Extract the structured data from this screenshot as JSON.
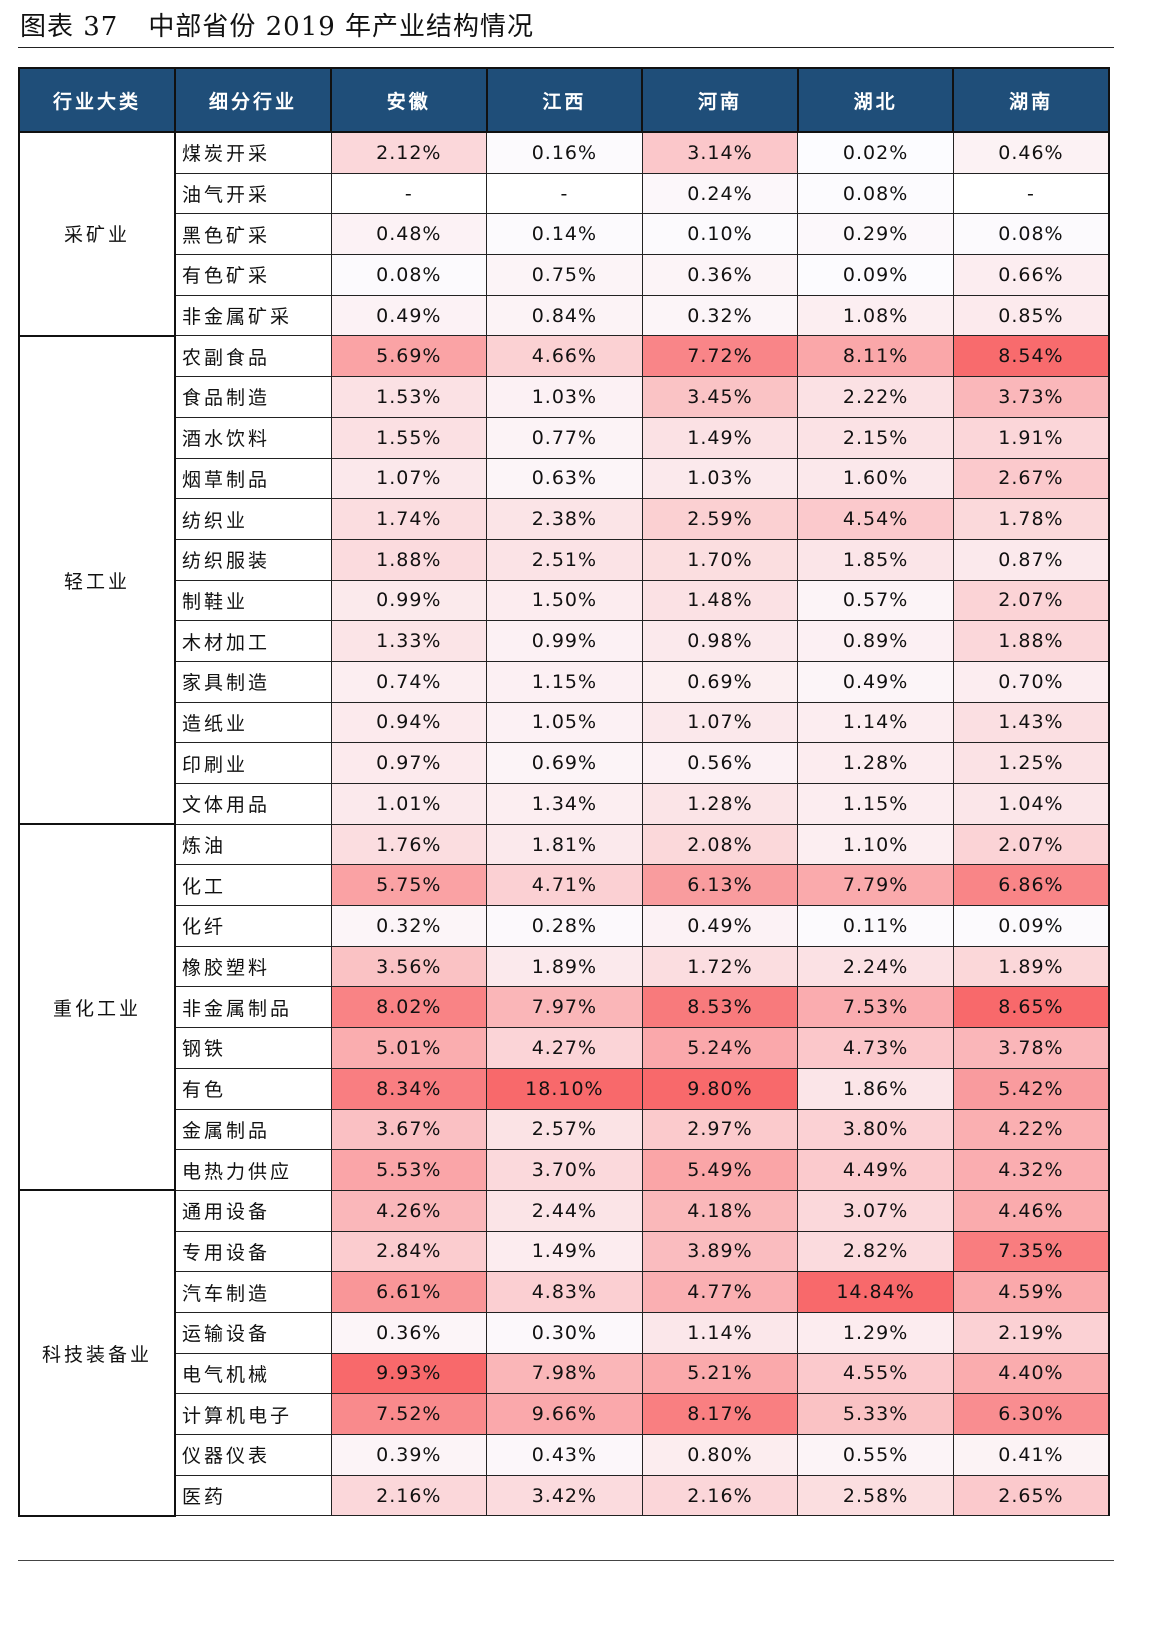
{
  "title": {
    "label": "图表 37",
    "text": "中部省份 2019 年产业结构情况"
  },
  "headers": [
    "行业大类",
    "细分行业",
    "安徽",
    "江西",
    "河南",
    "湖北",
    "湖南"
  ],
  "colors": {
    "header_bg": "#1f4e79",
    "low": "#fcfcff",
    "high": "#f8696b"
  },
  "groups": [
    {
      "name": "采矿业",
      "rows": [
        [
          "煤炭开采",
          "2.12%",
          "0.16%",
          "3.14%",
          "0.02%",
          "0.46%"
        ],
        [
          "油气开采",
          "-",
          "-",
          "0.24%",
          "0.08%",
          "-"
        ],
        [
          "黑色矿采",
          "0.48%",
          "0.14%",
          "0.10%",
          "0.29%",
          "0.08%"
        ],
        [
          "有色矿采",
          "0.08%",
          "0.75%",
          "0.36%",
          "0.09%",
          "0.66%"
        ],
        [
          "非金属矿采",
          "0.49%",
          "0.84%",
          "0.32%",
          "1.08%",
          "0.85%"
        ]
      ]
    },
    {
      "name": "轻工业",
      "rows": [
        [
          "农副食品",
          "5.69%",
          "4.66%",
          "7.72%",
          "8.11%",
          "8.54%"
        ],
        [
          "食品制造",
          "1.53%",
          "1.03%",
          "3.45%",
          "2.22%",
          "3.73%"
        ],
        [
          "酒水饮料",
          "1.55%",
          "0.77%",
          "1.49%",
          "2.15%",
          "1.91%"
        ],
        [
          "烟草制品",
          "1.07%",
          "0.63%",
          "1.03%",
          "1.60%",
          "2.67%"
        ],
        [
          "纺织业",
          "1.74%",
          "2.38%",
          "2.59%",
          "4.54%",
          "1.78%"
        ],
        [
          "纺织服装",
          "1.88%",
          "2.51%",
          "1.70%",
          "1.85%",
          "0.87%"
        ],
        [
          "制鞋业",
          "0.99%",
          "1.50%",
          "1.48%",
          "0.57%",
          "2.07%"
        ],
        [
          "木材加工",
          "1.33%",
          "0.99%",
          "0.98%",
          "0.89%",
          "1.88%"
        ],
        [
          "家具制造",
          "0.74%",
          "1.15%",
          "0.69%",
          "0.49%",
          "0.70%"
        ],
        [
          "造纸业",
          "0.94%",
          "1.05%",
          "1.07%",
          "1.14%",
          "1.43%"
        ],
        [
          "印刷业",
          "0.97%",
          "0.69%",
          "0.56%",
          "1.28%",
          "1.25%"
        ],
        [
          "文体用品",
          "1.01%",
          "1.34%",
          "1.28%",
          "1.15%",
          "1.04%"
        ]
      ]
    },
    {
      "name": "重化工业",
      "rows": [
        [
          "炼油",
          "1.76%",
          "1.81%",
          "2.08%",
          "1.10%",
          "2.07%"
        ],
        [
          "化工",
          "5.75%",
          "4.71%",
          "6.13%",
          "7.79%",
          "6.86%"
        ],
        [
          "化纤",
          "0.32%",
          "0.28%",
          "0.49%",
          "0.11%",
          "0.09%"
        ],
        [
          "橡胶塑料",
          "3.56%",
          "1.89%",
          "1.72%",
          "2.24%",
          "1.89%"
        ],
        [
          "非金属制品",
          "8.02%",
          "7.97%",
          "8.53%",
          "7.53%",
          "8.65%"
        ],
        [
          "钢铁",
          "5.01%",
          "4.27%",
          "5.24%",
          "4.73%",
          "3.78%"
        ],
        [
          "有色",
          "8.34%",
          "18.10%",
          "9.80%",
          "1.86%",
          "5.42%"
        ],
        [
          "金属制品",
          "3.67%",
          "2.57%",
          "2.97%",
          "3.80%",
          "4.22%"
        ],
        [
          "电热力供应",
          "5.53%",
          "3.70%",
          "5.49%",
          "4.49%",
          "4.32%"
        ]
      ]
    },
    {
      "name": "科技装备业",
      "rows": [
        [
          "通用设备",
          "4.26%",
          "2.44%",
          "4.18%",
          "3.07%",
          "4.46%"
        ],
        [
          "专用设备",
          "2.84%",
          "1.49%",
          "3.89%",
          "2.82%",
          "7.35%"
        ],
        [
          "汽车制造",
          "6.61%",
          "4.83%",
          "4.77%",
          "14.84%",
          "4.59%"
        ],
        [
          "运输设备",
          "0.36%",
          "0.30%",
          "1.14%",
          "1.29%",
          "2.19%"
        ],
        [
          "电气机械",
          "9.93%",
          "7.98%",
          "5.21%",
          "4.55%",
          "4.40%"
        ],
        [
          "计算机电子",
          "7.52%",
          "9.66%",
          "8.17%",
          "5.33%",
          "6.30%"
        ],
        [
          "仪器仪表",
          "0.39%",
          "0.43%",
          "0.80%",
          "0.55%",
          "0.41%"
        ],
        [
          "医药",
          "2.16%",
          "3.42%",
          "2.16%",
          "2.58%",
          "2.65%"
        ]
      ]
    }
  ]
}
